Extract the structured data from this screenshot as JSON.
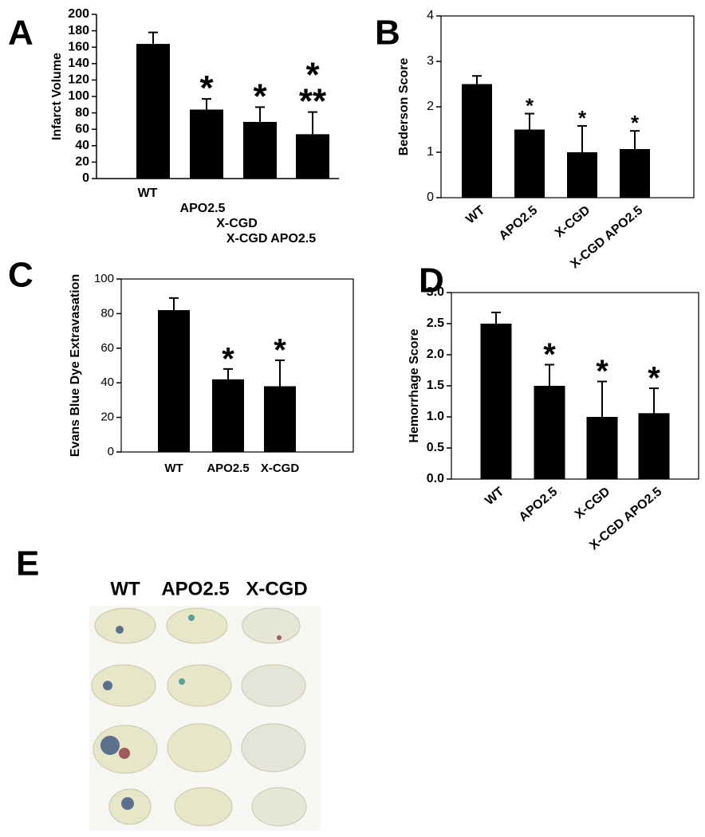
{
  "chart_data": [
    {
      "type": "bar",
      "panel_label": "A",
      "y_label": "Infarct Volume",
      "categories": [
        "WT",
        "APO2.5",
        "X-CGD",
        "X-CGD APO2.5"
      ],
      "values": [
        164,
        84,
        69,
        54
      ],
      "errors": [
        14,
        13,
        18,
        27
      ],
      "annotations": [
        null,
        [
          "*"
        ],
        [
          "*"
        ],
        [
          "*",
          "**"
        ]
      ],
      "color": "#000000",
      "ylim": [
        0,
        200
      ],
      "yticks": [
        0,
        20,
        40,
        60,
        80,
        100,
        120,
        140,
        160,
        180,
        200
      ]
    },
    {
      "type": "bar",
      "panel_label": "B",
      "y_label": "Bederson Score",
      "categories": [
        "WT",
        "APO2.5",
        "X-CGD",
        "X-CGD APO2.5"
      ],
      "values": [
        2.5,
        1.5,
        1.0,
        1.07
      ],
      "errors": [
        0.18,
        0.35,
        0.58,
        0.4
      ],
      "annotations": [
        null,
        [
          "*"
        ],
        [
          "*"
        ],
        [
          "*"
        ]
      ],
      "color": "#000000",
      "ylim": [
        0,
        4
      ],
      "yticks": [
        0,
        1,
        2,
        3,
        4
      ]
    },
    {
      "type": "bar",
      "panel_label": "C",
      "y_label": "Evans Blue Dye Extravasation",
      "categories": [
        "WT",
        "APO2.5",
        "X-CGD"
      ],
      "values": [
        82,
        42,
        38
      ],
      "errors": [
        7,
        6,
        15
      ],
      "annotations": [
        null,
        [
          "*"
        ],
        [
          "*"
        ]
      ],
      "color": "#000000",
      "ylim": [
        0,
        100
      ],
      "yticks": [
        0,
        20,
        40,
        60,
        80,
        100
      ]
    },
    {
      "type": "bar",
      "panel_label": "D",
      "y_label": "Hemorrhage Score",
      "categories": [
        "WT",
        "APO2.5",
        "X-CGD",
        "X-CGD APO2.5"
      ],
      "values": [
        2.5,
        1.5,
        1.0,
        1.06
      ],
      "errors": [
        0.18,
        0.34,
        0.57,
        0.4
      ],
      "annotations": [
        null,
        [
          "*"
        ],
        [
          "*"
        ],
        [
          "*"
        ]
      ],
      "color": "#000000",
      "ylim": [
        0,
        3
      ],
      "yticks": [
        {
          "value": 0,
          "label": "0.0"
        },
        {
          "value": 0.5,
          "label": "0.5"
        },
        {
          "value": 1,
          "label": "1.0"
        },
        {
          "value": 1.5,
          "label": "1.5"
        },
        {
          "value": 2,
          "label": "2.0"
        },
        {
          "value": 2.5,
          "label": "2.5"
        },
        {
          "value": 3,
          "label": "3.0"
        }
      ]
    }
  ],
  "panel_e": {
    "label": "E",
    "columns": [
      "WT",
      "APO2.5",
      "X-CGD"
    ]
  }
}
